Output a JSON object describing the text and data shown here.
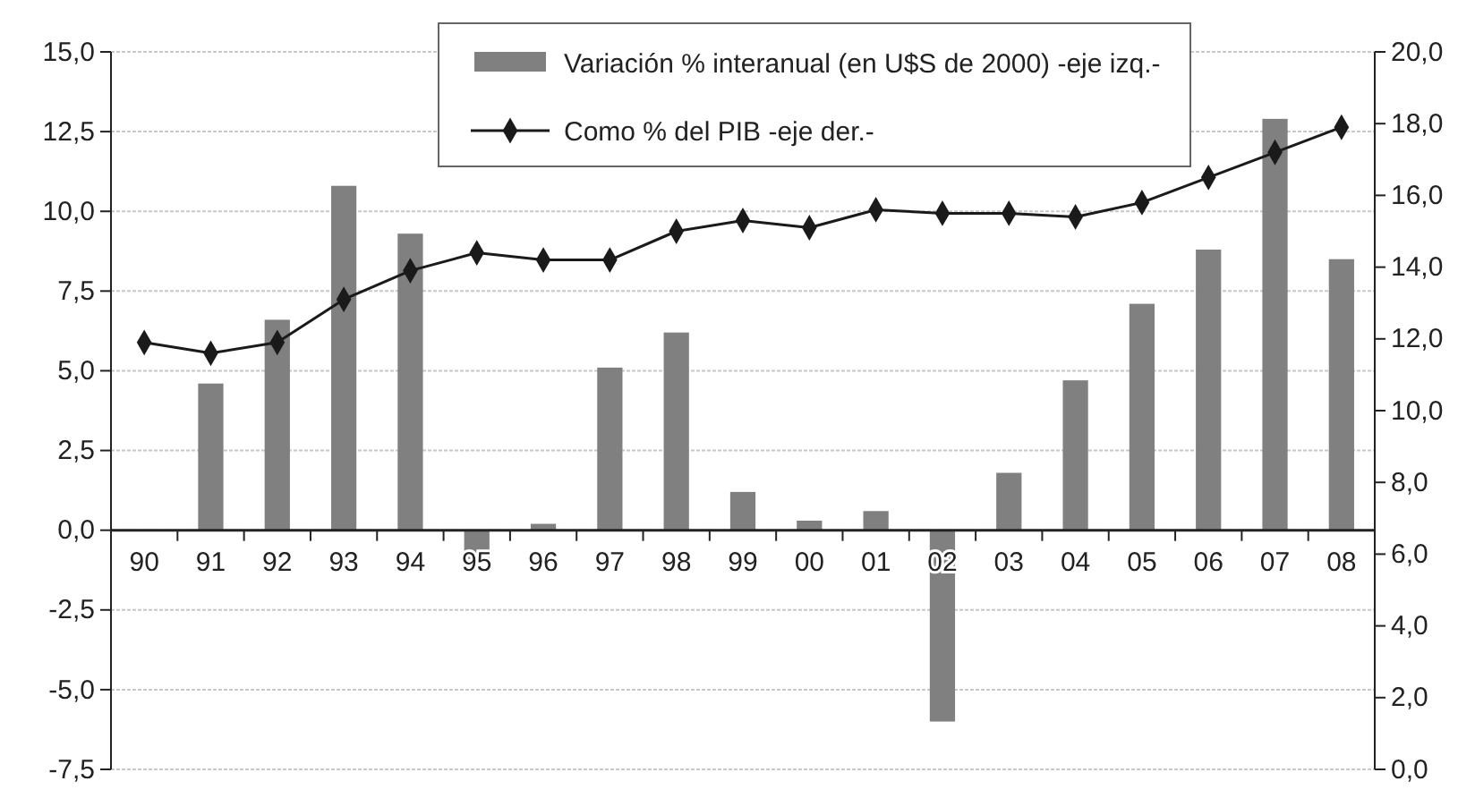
{
  "chart_data": {
    "type": "bar",
    "categories": [
      "90",
      "91",
      "92",
      "93",
      "94",
      "95",
      "96",
      "97",
      "98",
      "99",
      "00",
      "01",
      "02",
      "03",
      "04",
      "05",
      "06",
      "07",
      "08"
    ],
    "series": [
      {
        "name": "Variación % interanual (en U$S de 2000) -eje izq.-",
        "color": "#808080",
        "values": [
          null,
          4.6,
          6.6,
          10.8,
          9.3,
          -0.9,
          0.2,
          5.1,
          6.2,
          1.2,
          0.3,
          0.6,
          -6.0,
          1.8,
          4.7,
          7.1,
          8.8,
          12.9,
          8.5
        ]
      },
      {
        "name": "Como % del PIB -eje der.-",
        "type": "line",
        "axis": "y2",
        "color": "#1a1a1a",
        "marker": "diamond",
        "values": [
          11.9,
          11.6,
          11.9,
          13.1,
          13.9,
          14.4,
          14.2,
          14.2,
          15.0,
          15.3,
          15.1,
          15.6,
          15.5,
          15.5,
          15.4,
          15.8,
          16.5,
          17.2,
          17.9
        ]
      }
    ],
    "ylim": [
      -7.5,
      15
    ],
    "yticks": [
      {
        "value": -7.5,
        "label": "-7,5"
      },
      {
        "value": -5,
        "label": "-5,0"
      },
      {
        "value": -2.5,
        "label": "-2,5"
      },
      {
        "value": 0,
        "label": "0,0"
      },
      {
        "value": 2.5,
        "label": "2,5"
      },
      {
        "value": 5,
        "label": "5,0"
      },
      {
        "value": 7.5,
        "label": "7,5"
      },
      {
        "value": 10,
        "label": "10,0"
      },
      {
        "value": 12.5,
        "label": "12,5"
      },
      {
        "value": 15,
        "label": "15,0"
      }
    ],
    "y2lim": [
      0,
      20
    ],
    "y2ticks": [
      {
        "value": 0,
        "label": "0,0"
      },
      {
        "value": 2,
        "label": "2,0"
      },
      {
        "value": 4,
        "label": "4,0"
      },
      {
        "value": 6,
        "label": "6,0"
      },
      {
        "value": 8,
        "label": "8,0"
      },
      {
        "value": 10,
        "label": "10,0"
      },
      {
        "value": 12,
        "label": "12,0"
      },
      {
        "value": 14,
        "label": "14,0"
      },
      {
        "value": 16,
        "label": "16,0"
      },
      {
        "value": 18,
        "label": "18,0"
      },
      {
        "value": 20,
        "label": "20,0"
      }
    ],
    "grid": "y",
    "legend": "top"
  }
}
